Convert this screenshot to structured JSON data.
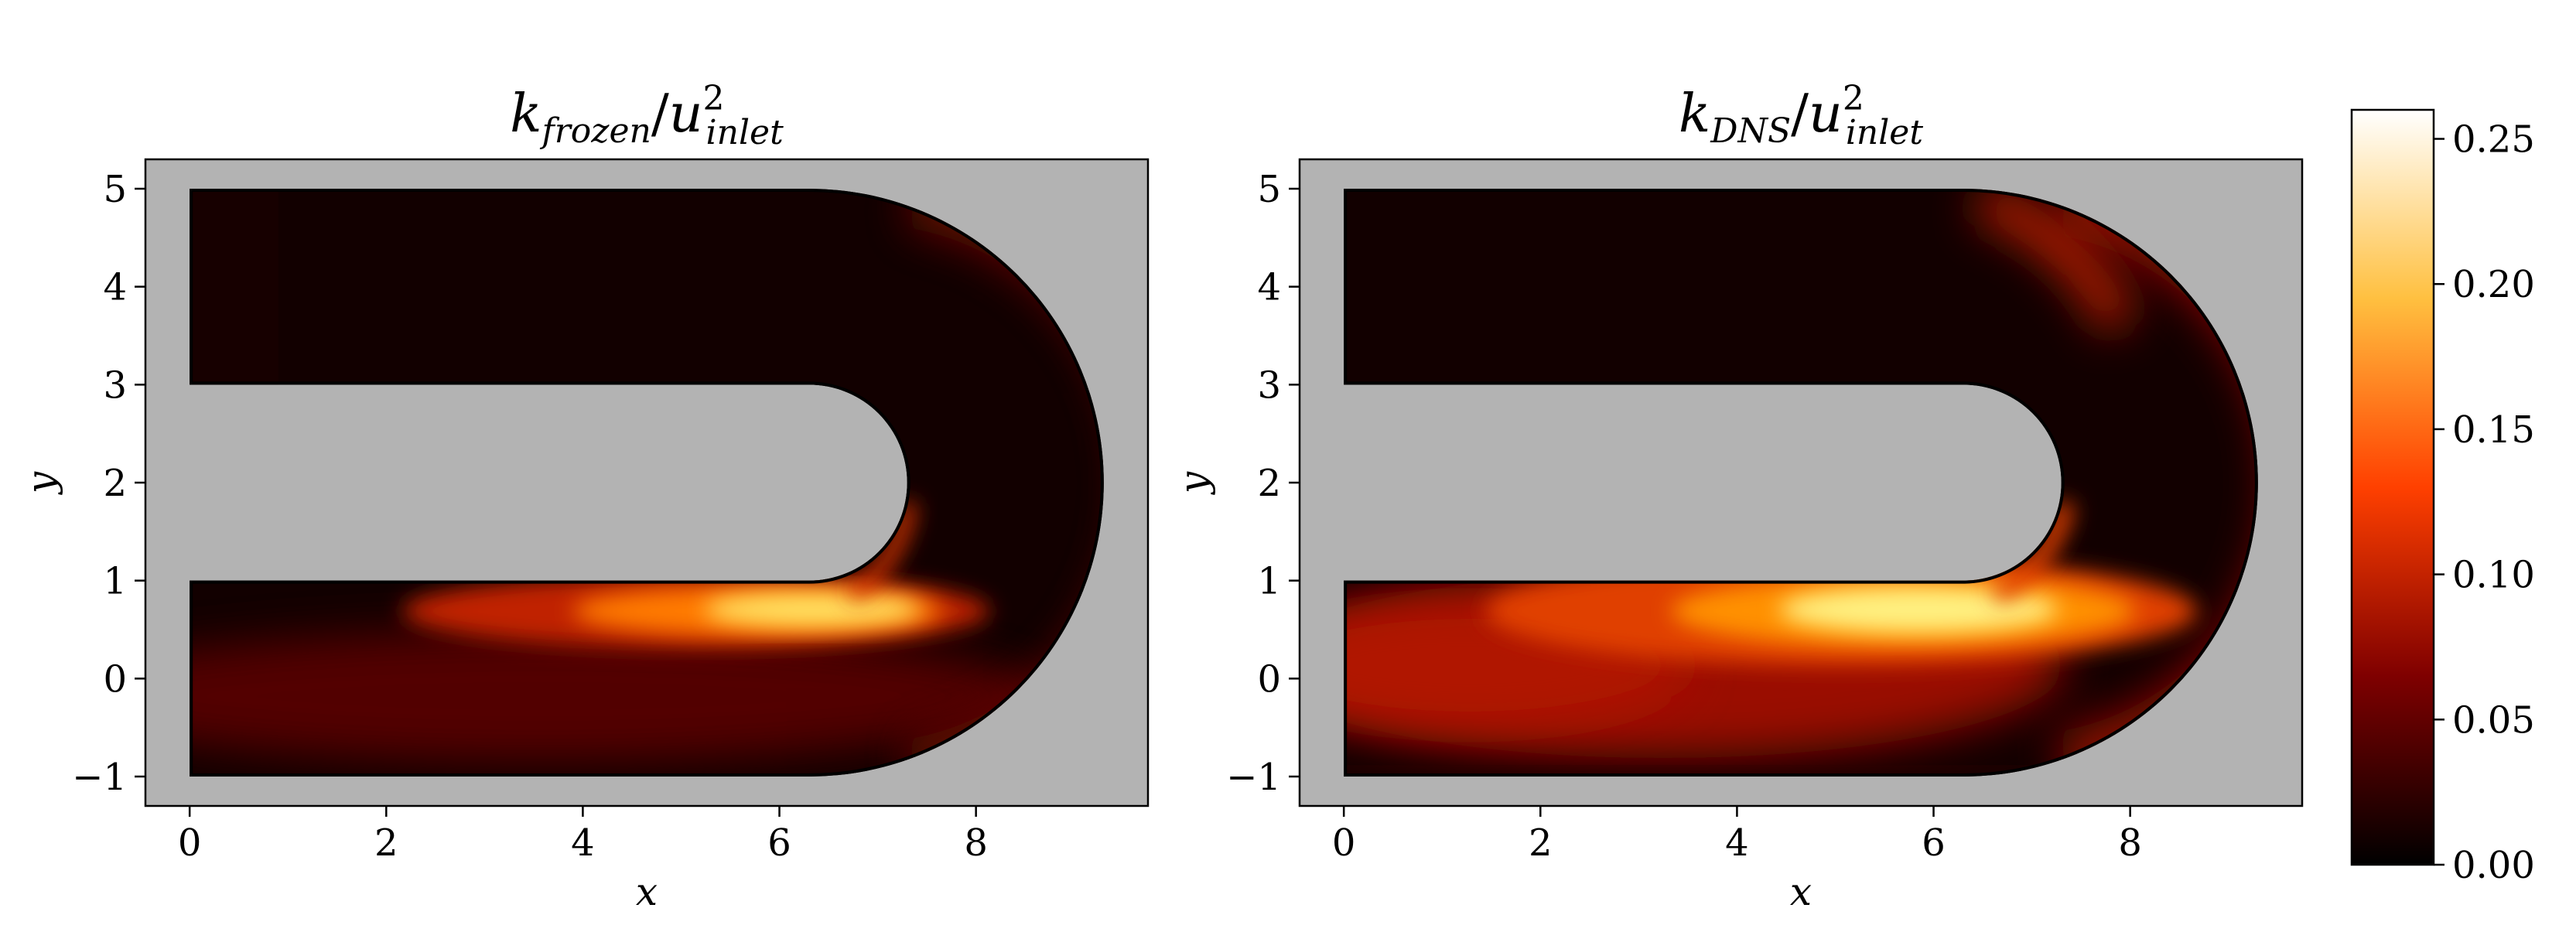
{
  "colors": {
    "background": "#b3b3b3",
    "colormap": "afmhot"
  },
  "chart_data": [
    {
      "type": "heatmap",
      "title": {
        "k": "k",
        "sub": "frozen",
        "sep": "/",
        "u": "u",
        "sup": "2",
        "sub2": "inlet"
      },
      "xlabel": "x",
      "ylabel": "y",
      "xlim": [
        -0.45,
        9.75
      ],
      "ylim": [
        -1.3,
        5.3
      ],
      "xticks": [
        0,
        2,
        4,
        6,
        8
      ],
      "xtick_labels": [
        "0",
        "2",
        "4",
        "6",
        "8"
      ],
      "yticks": [
        -1,
        0,
        1,
        2,
        3,
        4,
        5
      ],
      "ytick_labels": [
        "−1",
        "0",
        "1",
        "2",
        "3",
        "4",
        "5"
      ],
      "domain": {
        "channel_x": [
          0,
          6.3
        ],
        "outer_radius": 3.0,
        "inner_radius": 1.0,
        "bend_center": [
          6.3,
          2.0
        ],
        "y_range": [
          -1,
          5
        ]
      },
      "hotspot": {
        "x": 6.0,
        "y": 0.6,
        "value": 0.26
      }
    },
    {
      "type": "heatmap",
      "title": {
        "k": "k",
        "sub": "DNS",
        "sep": "/",
        "u": "u",
        "sup": "2",
        "sub2": "inlet"
      },
      "xlabel": "x",
      "ylabel": "y",
      "xlim": [
        -0.45,
        9.75
      ],
      "ylim": [
        -1.3,
        5.3
      ],
      "xticks": [
        0,
        2,
        4,
        6,
        8
      ],
      "xtick_labels": [
        "0",
        "2",
        "4",
        "6",
        "8"
      ],
      "yticks": [
        -1,
        0,
        1,
        2,
        3,
        4,
        5
      ],
      "ytick_labels": [
        "−1",
        "0",
        "1",
        "2",
        "3",
        "4",
        "5"
      ],
      "domain": {
        "channel_x": [
          0,
          6.3
        ],
        "outer_radius": 3.0,
        "inner_radius": 1.0,
        "bend_center": [
          6.3,
          2.0
        ],
        "y_range": [
          -1,
          5
        ]
      },
      "hotspot": {
        "x": 5.5,
        "y": 0.6,
        "value": 0.26
      }
    }
  ],
  "colorbar": {
    "range": [
      0.0,
      0.26
    ],
    "ticks": [
      0.0,
      0.05,
      0.1,
      0.15,
      0.2,
      0.25
    ],
    "tick_labels": [
      "0.00",
      "0.05",
      "0.10",
      "0.15",
      "0.20",
      "0.25"
    ]
  }
}
